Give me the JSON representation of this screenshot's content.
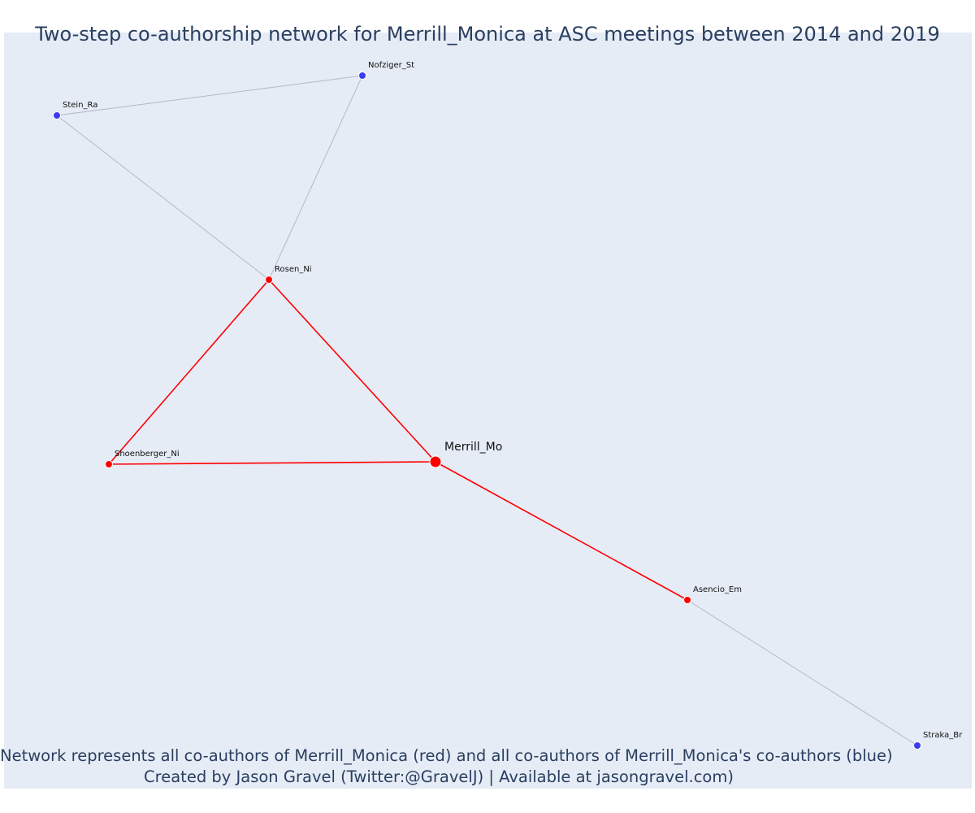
{
  "title": "Two-step co-authorship network for Merrill_Monica at ASC meetings between 2014 and 2019",
  "footer": {
    "line1": "Network represents all co-authors of Merrill_Monica (red) and all co-authors of Merrill_Monica's co-authors (blue)",
    "line2": "Created by Jason Gravel (Twitter:@GravelJ) | Available at jasongravel.com)"
  },
  "colors": {
    "background": "#e5ecf6",
    "first_step": "#ff0000",
    "second_step": "#3b3bf0",
    "second_step_edge": "#b3b8c8",
    "text": "#2a3f5f"
  },
  "nodes": [
    {
      "id": "Merrill_Mo",
      "label": "Merrill_Mo",
      "group": "focal"
    },
    {
      "id": "Rosen_Ni",
      "label": "Rosen_Ni",
      "group": "first"
    },
    {
      "id": "Shoenberger_Ni",
      "label": "Shoenberger_Ni",
      "group": "first"
    },
    {
      "id": "Asencio_Em",
      "label": "Asencio_Em",
      "group": "first"
    },
    {
      "id": "Stein_Ra",
      "label": "Stein_Ra",
      "group": "second"
    },
    {
      "id": "Nofziger_St",
      "label": "Nofziger_St",
      "group": "second"
    },
    {
      "id": "Straka_Br",
      "label": "Straka_Br",
      "group": "second"
    }
  ],
  "edges": [
    {
      "source": "Merrill_Mo",
      "target": "Rosen_Ni",
      "type": "first"
    },
    {
      "source": "Merrill_Mo",
      "target": "Shoenberger_Ni",
      "type": "first"
    },
    {
      "source": "Merrill_Mo",
      "target": "Asencio_Em",
      "type": "first"
    },
    {
      "source": "Rosen_Ni",
      "target": "Shoenberger_Ni",
      "type": "first"
    },
    {
      "source": "Rosen_Ni",
      "target": "Stein_Ra",
      "type": "second"
    },
    {
      "source": "Rosen_Ni",
      "target": "Nofziger_St",
      "type": "second"
    },
    {
      "source": "Stein_Ra",
      "target": "Nofziger_St",
      "type": "second"
    },
    {
      "source": "Asencio_Em",
      "target": "Straka_Br",
      "type": "second"
    }
  ]
}
